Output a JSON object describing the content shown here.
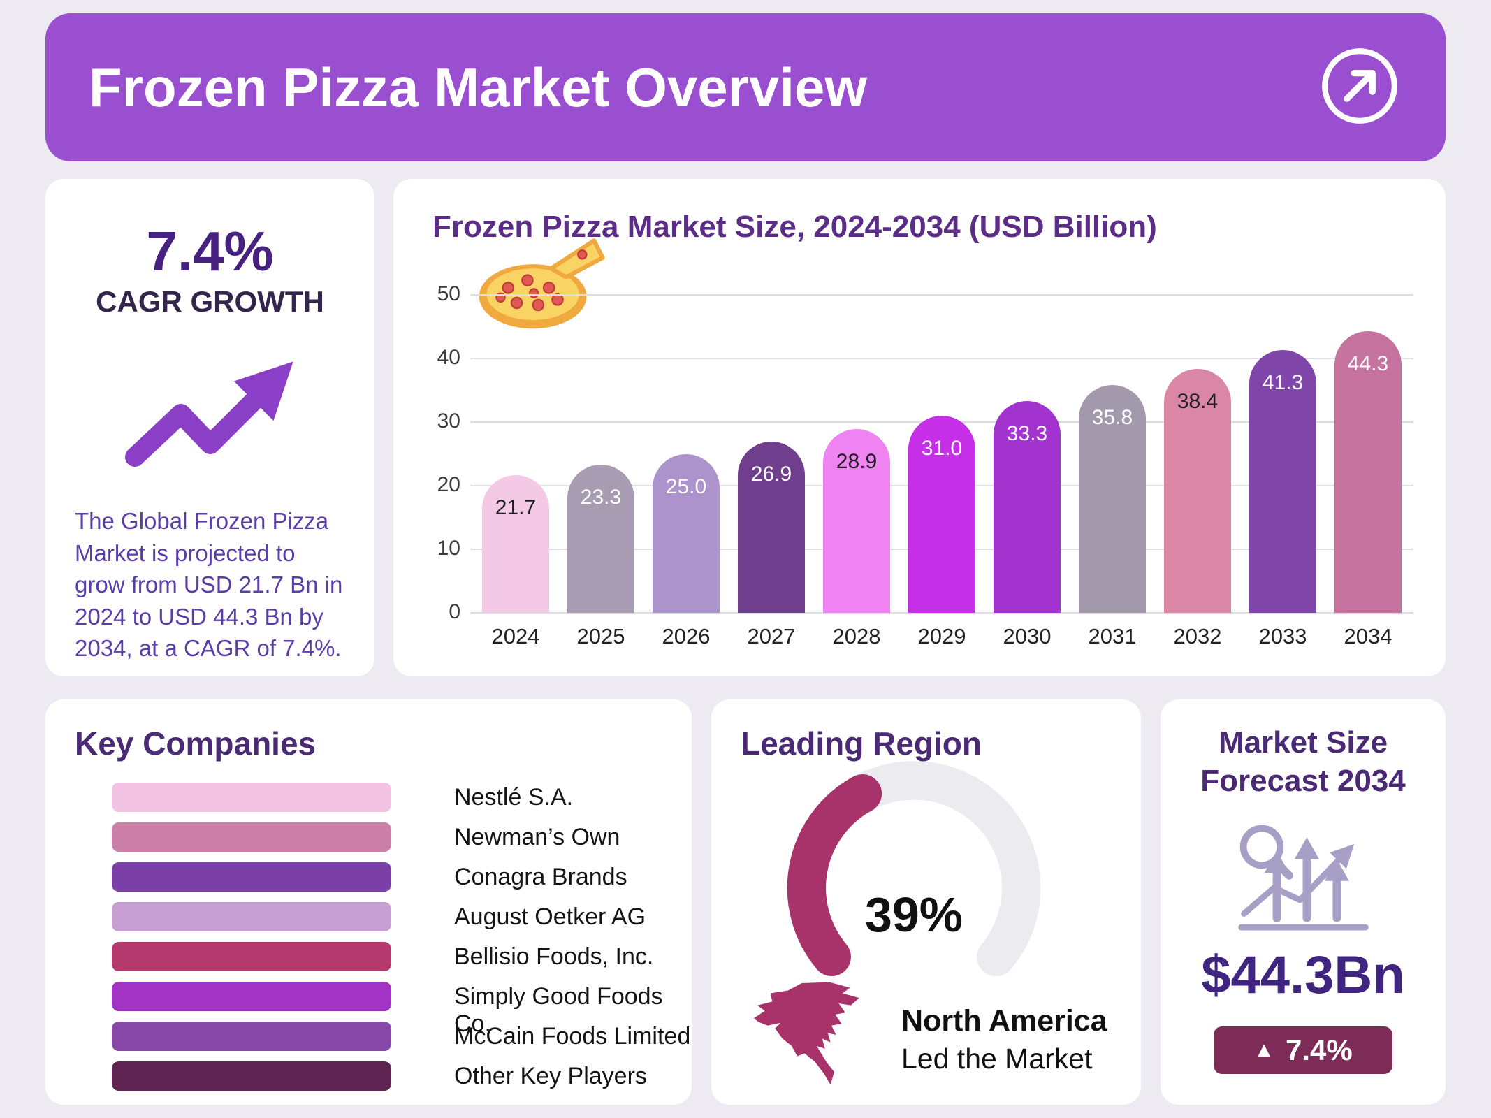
{
  "header": {
    "title": "Frozen Pizza Market Overview"
  },
  "colors": {
    "header_bg": "#9a4ed0",
    "gauge_track": "#ecebef",
    "gauge_fill": "#a8336a",
    "map_fill": "#a8336a",
    "badge_bg": "#7d2b57"
  },
  "cagr_card": {
    "value": "7.4%",
    "label": "CAGR GROWTH",
    "description": "The Global Frozen Pizza Market is projected to grow from USD 21.7 Bn in 2024 to USD 44.3 Bn by 2034, at a CAGR of 7.4%."
  },
  "chart_data": {
    "type": "bar",
    "title": "Frozen Pizza Market Size, 2024-2034 (USD Billion)",
    "categories": [
      "2024",
      "2025",
      "2026",
      "2027",
      "2028",
      "2029",
      "2030",
      "2031",
      "2032",
      "2033",
      "2034"
    ],
    "values": [
      21.7,
      23.3,
      25.0,
      26.9,
      28.9,
      31.0,
      33.3,
      35.8,
      38.4,
      41.3,
      44.3
    ],
    "value_labels": [
      "21.7",
      "23.3",
      "25.0",
      "26.9",
      "28.9",
      "31.0",
      "33.3",
      "35.8",
      "38.4",
      "41.3",
      "44.3"
    ],
    "bar_colors": [
      "#f4c9e6",
      "#a79cb2",
      "#ad93cb",
      "#6f3e8d",
      "#ef83f2",
      "#c62fe8",
      "#a233cf",
      "#a29aac",
      "#da87a6",
      "#7f45a8",
      "#c6729e"
    ],
    "value_label_colors": [
      "#1e1e1e",
      "#ffffff",
      "#ffffff",
      "#ffffff",
      "#1e1e1e",
      "#ffffff",
      "#ffffff",
      "#ffffff",
      "#1e1e1e",
      "#ffffff",
      "#ffffff"
    ],
    "xlabel": "",
    "ylabel": "",
    "ylim": [
      0,
      50
    ],
    "yticks": [
      0,
      10,
      20,
      30,
      40,
      50
    ],
    "grid": true,
    "legend": "none"
  },
  "key_companies": {
    "title": "Key Companies",
    "items": [
      {
        "label": "Nestlé S.A.",
        "color": "#f2c3e3"
      },
      {
        "label": "Newman’s Own",
        "color": "#cb7fa9"
      },
      {
        "label": "Conagra Brands",
        "color": "#7b3fa8"
      },
      {
        "label": "August Oetker AG",
        "color": "#c79fd2"
      },
      {
        "label": "Bellisio Foods, Inc.",
        "color": "#b43a6e"
      },
      {
        "label": "Simply Good Foods Co.",
        "color": "#a233c4"
      },
      {
        "label": "McCain Foods Limited",
        "color": "#8748a8"
      },
      {
        "label": "Other Key Players",
        "color": "#5e2351"
      }
    ]
  },
  "leading_region": {
    "title": "Leading Region",
    "percent_label": "39%",
    "percent_value": 39,
    "region": "North America",
    "caption": "Led the Market"
  },
  "forecast": {
    "title": "Market Size Forecast 2034",
    "value": "$44.3Bn",
    "badge_arrow": "▲",
    "badge_label": "7.4%"
  }
}
